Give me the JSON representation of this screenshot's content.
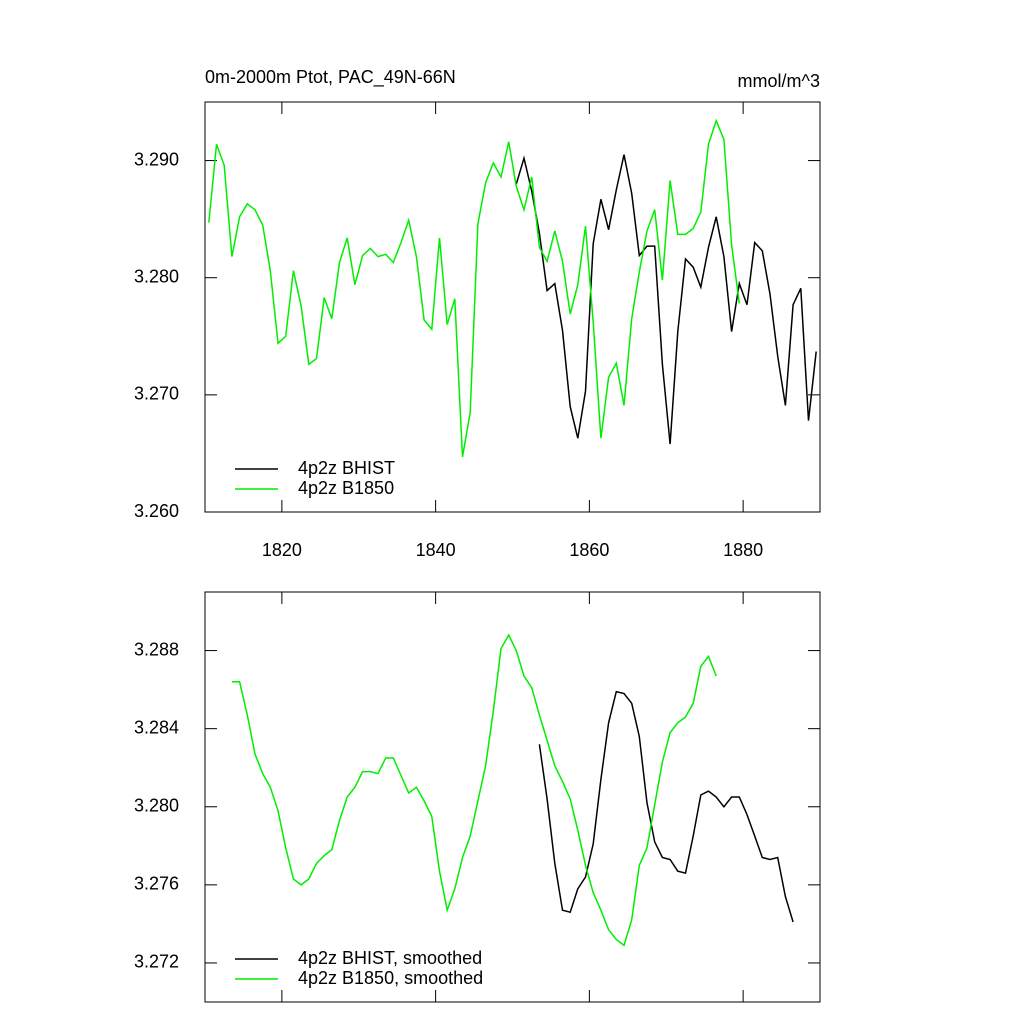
{
  "chart_data": [
    {
      "type": "line",
      "title": "0m-2000m Ptot, PAC_49N-66N",
      "units": "mmol/m^3",
      "xlim": [
        1810,
        1890
      ],
      "xticks": [
        1820,
        1840,
        1860,
        1880
      ],
      "xtick_labels": true,
      "ylim": [
        3.26,
        3.295
      ],
      "yticks": [
        {
          "value": 3.26,
          "label": "3.260"
        },
        {
          "value": 3.27,
          "label": "3.270"
        },
        {
          "value": 3.28,
          "label": "3.280"
        },
        {
          "value": 3.29,
          "label": "3.290"
        }
      ],
      "legend": "lower left",
      "series": [
        {
          "name": "4p2z BHIST",
          "color": "#000000",
          "x": [
            1850.5,
            1851.5,
            1852.5,
            1853.5,
            1854.5,
            1855.5,
            1856.5,
            1857.5,
            1858.5,
            1859.5,
            1860.5,
            1861.5,
            1862.5,
            1863.5,
            1864.5,
            1865.5,
            1866.5,
            1867.5,
            1868.5,
            1869.5,
            1870.5,
            1871.5,
            1872.5,
            1873.5,
            1874.5,
            1875.5,
            1876.5,
            1877.5,
            1878.5,
            1879.5,
            1880.5,
            1881.5,
            1882.5,
            1883.5,
            1884.5,
            1885.5,
            1886.5,
            1887.5,
            1888.5,
            1889.5
          ],
          "values": [
            3.288,
            3.2902,
            3.2874,
            3.2838,
            3.2789,
            3.2795,
            3.2755,
            3.269,
            3.2663,
            3.2703,
            3.2829,
            3.2867,
            3.2841,
            3.2875,
            3.2905,
            3.2872,
            3.2819,
            3.2827,
            3.2827,
            3.2726,
            3.2658,
            3.2754,
            3.2816,
            3.2809,
            3.2792,
            3.2826,
            3.2852,
            3.2818,
            3.2754,
            3.2795,
            3.2777,
            3.283,
            3.2823,
            3.2786,
            3.2733,
            3.2691,
            3.2777,
            3.2791,
            3.2678,
            3.2737
          ]
        },
        {
          "name": "4p2z B1850",
          "color": "#00ee00",
          "x": [
            1810.5,
            1811.5,
            1812.5,
            1813.5,
            1814.5,
            1815.5,
            1816.5,
            1817.5,
            1818.5,
            1819.5,
            1820.5,
            1821.5,
            1822.5,
            1823.5,
            1824.5,
            1825.5,
            1826.5,
            1827.5,
            1828.5,
            1829.5,
            1830.5,
            1831.5,
            1832.5,
            1833.5,
            1834.5,
            1835.5,
            1836.5,
            1837.5,
            1838.5,
            1839.5,
            1840.5,
            1841.5,
            1842.5,
            1843.5,
            1844.5,
            1845.5,
            1846.5,
            1847.5,
            1848.5,
            1849.5,
            1850.5,
            1851.5,
            1852.5,
            1853.5,
            1854.5,
            1855.5,
            1856.5,
            1857.5,
            1858.5,
            1859.5,
            1860.5,
            1861.5,
            1862.5,
            1863.5,
            1864.5,
            1865.5,
            1866.5,
            1867.5,
            1868.5,
            1869.5,
            1870.5,
            1871.5,
            1872.5,
            1873.5,
            1874.5,
            1875.5,
            1876.5,
            1877.5,
            1878.5,
            1879.5
          ],
          "values": [
            3.2847,
            3.2914,
            3.2896,
            3.2818,
            3.2852,
            3.2863,
            3.2858,
            3.2845,
            3.2806,
            3.2744,
            3.275,
            3.2806,
            3.2776,
            3.2726,
            3.2731,
            3.2783,
            3.2765,
            3.2813,
            3.2834,
            3.2794,
            3.2819,
            3.2825,
            3.2818,
            3.282,
            3.2813,
            3.283,
            3.2849,
            3.2818,
            3.2764,
            3.2756,
            3.2834,
            3.276,
            3.2782,
            3.2647,
            3.2685,
            3.2846,
            3.2881,
            3.2898,
            3.2886,
            3.2916,
            3.2878,
            3.2858,
            3.2886,
            3.2826,
            3.2814,
            3.284,
            3.2814,
            3.2769,
            3.2794,
            3.2844,
            3.2762,
            3.2663,
            3.2715,
            3.2727,
            3.2691,
            3.2765,
            3.2805,
            3.284,
            3.2858,
            3.2798,
            3.2883,
            3.2837,
            3.2837,
            3.2842,
            3.2856,
            3.2914,
            3.2934,
            3.2918,
            3.2828,
            3.2778
          ]
        }
      ]
    },
    {
      "type": "line",
      "xlim": [
        1810,
        1890
      ],
      "xticks": [
        1820,
        1840,
        1860,
        1880
      ],
      "xtick_labels": false,
      "ylim": [
        3.27,
        3.291
      ],
      "yticks": [
        3.272,
        3.276,
        {
          "value": 3.28,
          "label": "3.280"
        },
        3.284,
        3.288
      ],
      "legend": "lower left",
      "series": [
        {
          "name": "4p2z BHIST, smoothed",
          "color": "#000000",
          "x": [
            1853.5,
            1854.5,
            1855.5,
            1856.5,
            1857.5,
            1858.5,
            1859.5,
            1860.5,
            1861.5,
            1862.5,
            1863.5,
            1864.5,
            1865.5,
            1866.5,
            1867.5,
            1868.5,
            1869.5,
            1870.5,
            1871.5,
            1872.5,
            1873.5,
            1874.5,
            1875.5,
            1876.5,
            1877.5,
            1878.5,
            1879.5,
            1880.5,
            1881.5,
            1882.5,
            1883.5,
            1884.5,
            1885.5,
            1886.5
          ],
          "values": [
            3.2832,
            3.2804,
            3.2771,
            3.2747,
            3.2746,
            3.2758,
            3.2764,
            3.2781,
            3.2814,
            3.2843,
            3.2859,
            3.2858,
            3.2853,
            3.2836,
            3.2802,
            3.2782,
            3.2774,
            3.2773,
            3.2767,
            3.2766,
            3.2785,
            3.2806,
            3.2808,
            3.2805,
            3.28,
            3.2805,
            3.2805,
            3.2796,
            3.2785,
            3.2774,
            3.2773,
            3.2774,
            3.2754,
            3.2741
          ]
        },
        {
          "name": "4p2z B1850, smoothed",
          "color": "#00ee00",
          "x": [
            1813.5,
            1814.5,
            1815.5,
            1816.5,
            1817.5,
            1818.5,
            1819.5,
            1820.5,
            1821.5,
            1822.5,
            1823.5,
            1824.5,
            1825.5,
            1826.5,
            1827.5,
            1828.5,
            1829.5,
            1830.5,
            1831.5,
            1832.5,
            1833.5,
            1834.5,
            1835.5,
            1836.5,
            1837.5,
            1838.5,
            1839.5,
            1840.5,
            1841.5,
            1842.5,
            1843.5,
            1844.5,
            1845.5,
            1846.5,
            1847.5,
            1848.5,
            1849.5,
            1850.5,
            1851.5,
            1852.5,
            1853.5,
            1854.5,
            1855.5,
            1856.5,
            1857.5,
            1858.5,
            1859.5,
            1860.5,
            1861.5,
            1862.5,
            1863.5,
            1864.5,
            1865.5,
            1866.5,
            1867.5,
            1868.5,
            1869.5,
            1870.5,
            1871.5,
            1872.5,
            1873.5,
            1874.5,
            1875.5,
            1876.5
          ],
          "values": [
            3.2864,
            3.2864,
            3.2847,
            3.2827,
            3.2817,
            3.281,
            3.2798,
            3.2779,
            3.2763,
            3.276,
            3.2763,
            3.2771,
            3.2775,
            3.2778,
            3.2793,
            3.2805,
            3.281,
            3.2818,
            3.2818,
            3.2817,
            3.2825,
            3.2825,
            3.2816,
            3.2807,
            3.281,
            3.2803,
            3.2795,
            3.2767,
            3.2747,
            3.2758,
            3.2774,
            3.2785,
            3.2803,
            3.2821,
            3.2849,
            3.2881,
            3.2888,
            3.288,
            3.2867,
            3.2861,
            3.2847,
            3.2834,
            3.2821,
            3.2813,
            3.2804,
            3.2788,
            3.277,
            3.2756,
            3.2747,
            3.2737,
            3.2732,
            3.2729,
            3.2742,
            3.277,
            3.2779,
            3.2801,
            3.2823,
            3.2838,
            3.2843,
            3.2846,
            3.2853,
            3.2872,
            3.2877,
            3.2867
          ]
        }
      ]
    }
  ]
}
